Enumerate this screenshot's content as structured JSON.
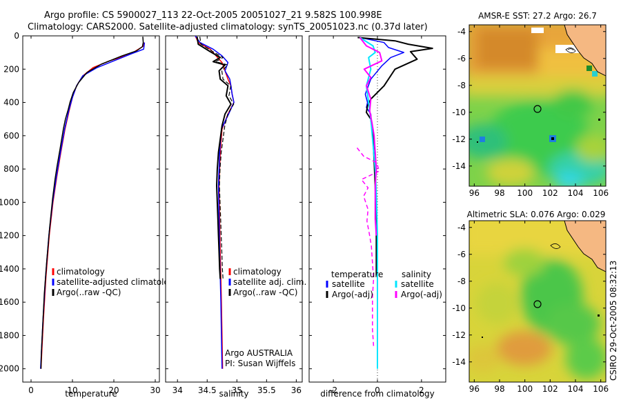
{
  "title": {
    "line1": "Argo profile: CS 5900027_113 22-Oct-2005 20051027_21 9.582S 100.998E",
    "line2": "Climatology: CARS2000. Satellite-adjusted climatology: synTS_20051023.nc (0.37d later)"
  },
  "credit": "CSIRO 29-Oct-2005 08:32:13",
  "colors": {
    "red": "#ff0000",
    "blue": "#0000ff",
    "black": "#000000",
    "cyan": "#00e5ff",
    "magenta": "#ff00ff",
    "land": "#f5b882"
  },
  "chart_data": [
    {
      "type": "line",
      "id": "temperature",
      "xlabel": "temperature",
      "xlim": [
        -2,
        31
      ],
      "ylim": [
        2080,
        0
      ],
      "xticks": [
        0,
        10,
        20,
        30
      ],
      "yticks": [
        0,
        200,
        400,
        600,
        800,
        1000,
        1200,
        1400,
        1600,
        1800,
        2000
      ],
      "series": [
        {
          "name": "climatology",
          "color": "red",
          "width": 1.5,
          "points": [
            [
              27.3,
              40
            ],
            [
              27.2,
              60
            ],
            [
              26.6,
              70
            ],
            [
              24,
              110
            ],
            [
              19,
              150
            ],
            [
              15,
              190
            ],
            [
              12.5,
              240
            ],
            [
              11,
              300
            ],
            [
              10,
              370
            ],
            [
              9.2,
              450
            ],
            [
              8.2,
              560
            ],
            [
              7.2,
              700
            ],
            [
              6.2,
              850
            ],
            [
              5.3,
              1000
            ],
            [
              4.4,
              1200
            ],
            [
              3.6,
              1450
            ],
            [
              3.0,
              1700
            ],
            [
              2.6,
              1900
            ],
            [
              2.4,
              2000
            ]
          ]
        },
        {
          "name": "satellite-adjusted climatology",
          "color": "blue",
          "width": 1.5,
          "points": [
            [
              27.4,
              40
            ],
            [
              27.3,
              60
            ],
            [
              27.2,
              80
            ],
            [
              24,
              110
            ],
            [
              21,
              140
            ],
            [
              16,
              190
            ],
            [
              12.5,
              240
            ],
            [
              11,
              300
            ],
            [
              10,
              370
            ],
            [
              9.1,
              450
            ],
            [
              8.1,
              560
            ],
            [
              7.1,
              700
            ],
            [
              6.1,
              850
            ],
            [
              5.2,
              1000
            ],
            [
              4.3,
              1200
            ],
            [
              3.5,
              1450
            ],
            [
              2.9,
              1700
            ],
            [
              2.5,
              1900
            ],
            [
              2.3,
              2000
            ]
          ]
        },
        {
          "name": "Argo(..raw -QC)",
          "color": "black",
          "width": 1.5,
          "points": [
            [
              27,
              5
            ],
            [
              27.1,
              40
            ],
            [
              26.9,
              65
            ],
            [
              25.5,
              90
            ],
            [
              22,
              120
            ],
            [
              17,
              170
            ],
            [
              13.5,
              220
            ],
            [
              11.5,
              280
            ],
            [
              10.2,
              340
            ],
            [
              9.4,
              400
            ],
            [
              9.0,
              440
            ],
            [
              8.3,
              500
            ],
            [
              7.8,
              560
            ],
            [
              7.0,
              680
            ],
            [
              6.3,
              780
            ],
            [
              5.8,
              860
            ],
            [
              5.2,
              980
            ],
            [
              4.5,
              1150
            ],
            [
              3.8,
              1350
            ],
            [
              3.2,
              1550
            ],
            [
              2.8,
              1750
            ],
            [
              2.5,
              1900
            ],
            [
              2.4,
              2000
            ]
          ]
        }
      ],
      "legend": [
        {
          "label": "climatology",
          "color": "red"
        },
        {
          "label": "satellite-adjusted climatology",
          "color": "blue"
        },
        {
          "label": "Argo(..raw -QC)",
          "color": "black"
        }
      ]
    },
    {
      "type": "line",
      "id": "salinity",
      "xlabel": "salinity",
      "xlim": [
        33.8,
        36.1
      ],
      "ylim": [
        2080,
        0
      ],
      "xticks": [
        34,
        34.5,
        35,
        35.5,
        36
      ],
      "yticks": [
        0,
        200,
        400,
        600,
        800,
        1000,
        1200,
        1400,
        1600,
        1800,
        2000
      ],
      "series": [
        {
          "name": "climatology",
          "color": "red",
          "width": 1.5,
          "points": [
            [
              34.3,
              0
            ],
            [
              34.35,
              40
            ],
            [
              34.55,
              80
            ],
            [
              34.65,
              120
            ],
            [
              34.75,
              160
            ],
            [
              34.8,
              210
            ],
            [
              34.85,
              260
            ],
            [
              34.9,
              300
            ],
            [
              34.92,
              350
            ],
            [
              34.95,
              400
            ],
            [
              34.85,
              470
            ],
            [
              34.75,
              560
            ],
            [
              34.72,
              700
            ],
            [
              34.7,
              900
            ],
            [
              34.71,
              1100
            ],
            [
              34.72,
              1300
            ],
            [
              34.73,
              1450
            ],
            [
              34.74,
              1600
            ],
            [
              34.75,
              1800
            ],
            [
              34.76,
              2000
            ]
          ]
        },
        {
          "name": "satellite adj. clim.",
          "color": "blue",
          "width": 1.5,
          "points": [
            [
              34.3,
              0
            ],
            [
              34.38,
              40
            ],
            [
              34.6,
              80
            ],
            [
              34.75,
              120
            ],
            [
              34.85,
              160
            ],
            [
              34.8,
              210
            ],
            [
              34.88,
              260
            ],
            [
              34.9,
              300
            ],
            [
              34.92,
              350
            ],
            [
              34.95,
              400
            ],
            [
              34.86,
              470
            ],
            [
              34.74,
              560
            ],
            [
              34.71,
              700
            ],
            [
              34.69,
              900
            ],
            [
              34.7,
              1100
            ],
            [
              34.71,
              1300
            ],
            [
              34.72,
              1450
            ],
            [
              34.73,
              1600
            ],
            [
              34.74,
              1800
            ],
            [
              34.75,
              2000
            ]
          ]
        },
        {
          "name": "Argo(..raw -QC)",
          "color": "black",
          "width": 2,
          "points": [
            [
              34.33,
              5
            ],
            [
              34.35,
              50
            ],
            [
              34.55,
              95
            ],
            [
              34.72,
              130
            ],
            [
              34.6,
              155
            ],
            [
              34.8,
              175
            ],
            [
              34.7,
              210
            ],
            [
              34.72,
              260
            ],
            [
              34.85,
              300
            ],
            [
              34.82,
              360
            ],
            [
              34.9,
              410
            ],
            [
              34.8,
              470
            ],
            [
              34.75,
              540
            ],
            [
              34.72,
              620
            ],
            [
              34.69,
              700
            ],
            [
              34.67,
              800
            ],
            [
              34.66,
              900
            ],
            [
              34.67,
              1000
            ],
            [
              34.68,
              1100
            ],
            [
              34.69,
              1200
            ],
            [
              34.7,
              1300
            ],
            [
              34.71,
              1400
            ],
            [
              34.72,
              1460
            ]
          ]
        }
      ],
      "legend": [
        {
          "label": "climatology",
          "color": "red"
        },
        {
          "label": "satellite adj. clim.",
          "color": "blue"
        },
        {
          "label": "Argo(..raw -QC)",
          "color": "black"
        }
      ],
      "annotations": [
        "Argo AUSTRALIA",
        "PI: Susan Wijffels"
      ]
    },
    {
      "type": "line",
      "id": "difference",
      "xlabel": "difference from climatology",
      "xlim": [
        -3.1,
        3.1
      ],
      "ylim": [
        2080,
        0
      ],
      "xticks": [
        -2,
        0,
        2
      ],
      "yticks": [
        0,
        200,
        400,
        600,
        800,
        1000,
        1200,
        1400,
        1600,
        1800,
        2000
      ],
      "series": [
        {
          "name": "temperature satellite",
          "color": "blue",
          "width": 1.5,
          "points": [
            [
              -0.8,
              10
            ],
            [
              0.3,
              40
            ],
            [
              0.5,
              70
            ],
            [
              1.2,
              100
            ],
            [
              0.6,
              130
            ],
            [
              0.2,
              180
            ],
            [
              -0.3,
              260
            ],
            [
              -0.55,
              350
            ],
            [
              -0.45,
              400
            ],
            [
              -0.5,
              430
            ],
            [
              -0.3,
              470
            ],
            [
              -0.25,
              560
            ],
            [
              -0.15,
              700
            ],
            [
              -0.1,
              900
            ],
            [
              -0.05,
              1200
            ],
            [
              0,
              1400
            ],
            [
              0,
              1440
            ]
          ]
        },
        {
          "name": "temperature Argo(-adj)",
          "color": "black",
          "width": 2,
          "points": [
            [
              -0.9,
              10
            ],
            [
              0.8,
              30
            ],
            [
              1.4,
              50
            ],
            [
              2.5,
              75
            ],
            [
              1.5,
              95
            ],
            [
              1.8,
              140
            ],
            [
              0.8,
              200
            ],
            [
              0.3,
              300
            ],
            [
              -0.3,
              380
            ],
            [
              -0.45,
              420
            ],
            [
              -0.5,
              460
            ],
            [
              -0.3,
              500
            ],
            [
              -0.2,
              600
            ],
            [
              -0.15,
              750
            ],
            [
              -0.1,
              900
            ],
            [
              -0.05,
              1200
            ],
            [
              -0.05,
              1440
            ]
          ]
        },
        {
          "name": "salinity satellite",
          "color": "cyan",
          "width": 2,
          "points": [
            [
              -0.8,
              10
            ],
            [
              -0.2,
              60
            ],
            [
              -0.1,
              100
            ],
            [
              -0.4,
              130
            ],
            [
              -0.3,
              200
            ],
            [
              -0.5,
              300
            ],
            [
              -0.4,
              400
            ],
            [
              -0.3,
              500
            ],
            [
              -0.2,
              650
            ],
            [
              -0.1,
              800
            ],
            [
              -0.05,
              950
            ],
            [
              0,
              1200
            ],
            [
              0,
              1500
            ],
            [
              0,
              1800
            ],
            [
              0,
              2000
            ]
          ]
        },
        {
          "name": "salinity Argo(-adj)",
          "color": "magenta",
          "width": 2,
          "points": [
            [
              -0.8,
              10
            ],
            [
              -0.5,
              60
            ],
            [
              0.1,
              100
            ],
            [
              0.2,
              150
            ],
            [
              -0.6,
              200
            ],
            [
              -0.3,
              250
            ],
            [
              -0.5,
              300
            ],
            [
              -0.3,
              380
            ],
            [
              -0.35,
              450
            ],
            [
              -0.25,
              520
            ],
            [
              -0.15,
              600
            ],
            [
              -0.1,
              700
            ],
            [
              -0.05,
              800
            ],
            [
              -0.1,
              900
            ],
            [
              -0.1,
              1000
            ],
            [
              -0.1,
              1100
            ],
            [
              -0.05,
              1200
            ]
          ]
        }
      ],
      "legend": [
        {
          "group": "temperature",
          "label": "satellite",
          "color": "blue"
        },
        {
          "group": "temperature",
          "label": "Argo(-adj)",
          "color": "black"
        },
        {
          "group": "salinity",
          "label": "satellite",
          "color": "cyan"
        },
        {
          "group": "salinity",
          "label": "Argo(-adj)",
          "color": "magenta"
        }
      ]
    },
    {
      "type": "heatmap",
      "id": "sst_map",
      "title": "AMSR-E SST: 27.2 Argo: 26.7",
      "xlim": [
        95.6,
        106.4
      ],
      "ylim": [
        -15.5,
        -3.5
      ],
      "xticks": [
        96,
        98,
        100,
        102,
        104,
        106
      ],
      "yticks": [
        -4,
        -6,
        -8,
        -10,
        -12,
        -14
      ],
      "argo_position": [
        100.998,
        -9.582
      ]
    },
    {
      "type": "heatmap",
      "id": "sla_map",
      "title": "Altimetric SLA: 0.076 Argo: 0.029",
      "xlim": [
        95.6,
        106.4
      ],
      "ylim": [
        -15.5,
        -3.5
      ],
      "xticks": [
        96,
        98,
        100,
        102,
        104,
        106
      ],
      "yticks": [
        -4,
        -6,
        -8,
        -10,
        -12,
        -14
      ],
      "argo_position": [
        100.998,
        -9.582
      ]
    }
  ]
}
